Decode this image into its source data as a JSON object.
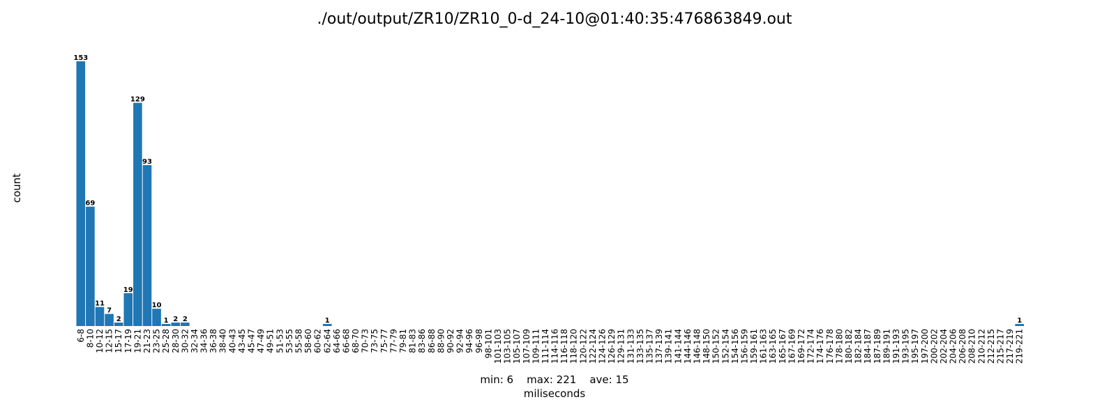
{
  "chart_data": {
    "type": "bar",
    "title": "./out/output/ZR10/ZR10_0-d_24-10@01:40:35:476863849.out",
    "xlabel_stats": "min: 6    max: 221    ave: 15",
    "xlabel": "miliseconds",
    "ylabel": "count",
    "grid": false,
    "ylim": [
      0,
      160
    ],
    "bar_color": "#1f77b4",
    "categories": [
      "6-8",
      "8-10",
      "10-12",
      "12-15",
      "15-17",
      "17-19",
      "19-21",
      "21-23",
      "23-25",
      "25-28",
      "28-30",
      "30-32",
      "32-34",
      "34-36",
      "36-38",
      "38-40",
      "40-43",
      "43-45",
      "45-47",
      "47-49",
      "49-51",
      "51-53",
      "53-55",
      "55-58",
      "58-60",
      "60-62",
      "62-64",
      "64-66",
      "66-68",
      "68-70",
      "70-73",
      "73-75",
      "75-77",
      "77-79",
      "79-81",
      "81-83",
      "83-86",
      "86-88",
      "88-90",
      "90-92",
      "92-94",
      "94-96",
      "96-98",
      "98-101",
      "101-103",
      "103-105",
      "105-107",
      "107-109",
      "109-111",
      "111-114",
      "114-116",
      "116-118",
      "118-120",
      "120-122",
      "122-124",
      "124-126",
      "126-129",
      "129-131",
      "131-133",
      "133-135",
      "135-137",
      "137-139",
      "139-141",
      "141-144",
      "144-146",
      "146-148",
      "148-150",
      "150-152",
      "152-154",
      "154-156",
      "156-159",
      "159-161",
      "161-163",
      "163-165",
      "165-167",
      "167-169",
      "169-172",
      "172-174",
      "174-176",
      "176-178",
      "178-180",
      "180-182",
      "182-184",
      "184-187",
      "187-189",
      "189-191",
      "191-193",
      "193-195",
      "195-197",
      "197-200",
      "200-202",
      "202-204",
      "204-206",
      "206-208",
      "208-210",
      "210-212",
      "212-215",
      "215-217",
      "217-219",
      "219-221"
    ],
    "values": [
      153,
      69,
      11,
      7,
      2,
      19,
      129,
      93,
      10,
      1,
      2,
      2,
      0,
      0,
      0,
      0,
      0,
      0,
      0,
      0,
      0,
      0,
      0,
      0,
      0,
      0,
      1,
      0,
      0,
      0,
      0,
      0,
      0,
      0,
      0,
      0,
      0,
      0,
      0,
      0,
      0,
      0,
      0,
      0,
      0,
      0,
      0,
      0,
      0,
      0,
      0,
      0,
      0,
      0,
      0,
      0,
      0,
      0,
      0,
      0,
      0,
      0,
      0,
      0,
      0,
      0,
      0,
      0,
      0,
      0,
      0,
      0,
      0,
      0,
      0,
      0,
      0,
      0,
      0,
      0,
      0,
      0,
      0,
      0,
      0,
      0,
      0,
      0,
      0,
      0,
      0,
      0,
      0,
      0,
      0,
      0,
      0,
      0,
      0,
      1
    ]
  }
}
